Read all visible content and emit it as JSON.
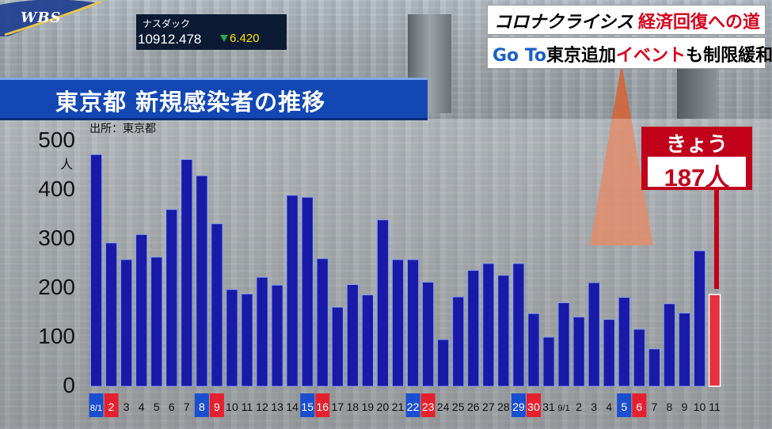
{
  "broadcast": {
    "logo": "WBS",
    "ticker": {
      "name": "ナスダック",
      "value": "10912.478",
      "change": "6.420"
    },
    "headline_series": "コロナクライシス",
    "headline_main": "経済回復への道",
    "subheadline": {
      "part1": "Go To",
      "part2": "東京追加",
      "part3": "イベント",
      "part4": "も制限緩和"
    }
  },
  "chart_title": "東京都  新規感染者の推移",
  "source": "出所：東京都",
  "callout": {
    "label": "きょう",
    "value": "187人"
  },
  "colors": {
    "bar": "#1a1aa8",
    "today_bar": "#e63240",
    "weekend_red": "#e6212f",
    "weekend_blue": "#1b4fd1",
    "banner": "#1347b4"
  },
  "chart_data": {
    "type": "bar",
    "title": "東京都  新規感染者の推移",
    "ylabel": "人",
    "ylim": [
      0,
      500
    ],
    "yticks": [
      0,
      100,
      200,
      300,
      400,
      500
    ],
    "categories": [
      "8/1",
      "2",
      "3",
      "4",
      "5",
      "6",
      "7",
      "8",
      "9",
      "10",
      "11",
      "12",
      "13",
      "14",
      "15",
      "16",
      "17",
      "18",
      "19",
      "20",
      "21",
      "22",
      "23",
      "24",
      "25",
      "26",
      "27",
      "28",
      "29",
      "30",
      "31",
      "9/1",
      "2",
      "3",
      "4",
      "5",
      "6",
      "7",
      "8",
      "9",
      "10",
      "11"
    ],
    "category_style": [
      "blue",
      "red",
      "",
      "",
      "",
      "",
      "",
      "blue",
      "red",
      "",
      "",
      "",
      "",
      "",
      "blue",
      "red",
      "",
      "",
      "",
      "",
      "",
      "blue",
      "red",
      "",
      "",
      "",
      "",
      "",
      "blue",
      "red",
      "",
      "",
      "",
      "",
      "",
      "blue",
      "red",
      "",
      "",
      "",
      "",
      ""
    ],
    "values": [
      472,
      292,
      258,
      309,
      263,
      360,
      462,
      429,
      331,
      197,
      188,
      222,
      206,
      389,
      385,
      260,
      161,
      207,
      186,
      339,
      258,
      258,
      212,
      95,
      182,
      236,
      250,
      226,
      250,
      148,
      100,
      170,
      141,
      211,
      136,
      181,
      116,
      76,
      168,
      149,
      276,
      187
    ],
    "highlight_index": 41,
    "grid": false,
    "legend": "none"
  }
}
